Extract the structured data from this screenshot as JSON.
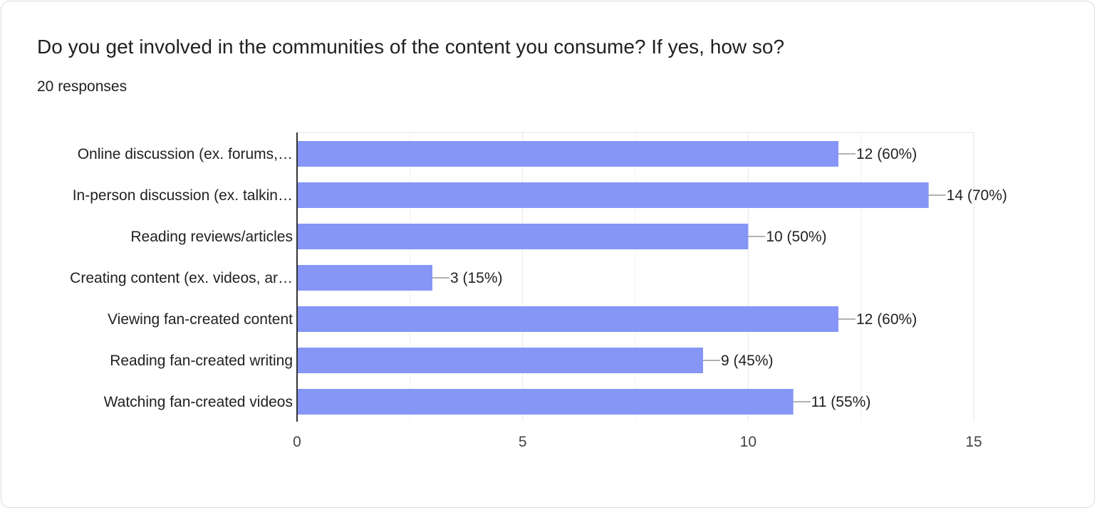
{
  "card": {
    "question": "Do you get involved in the communities of the content you consume? If yes, how so?",
    "responses": "20 responses"
  },
  "colors": {
    "bar": "#8596f7",
    "grid": "#e6e6e6",
    "axis": "#333333",
    "text": "#202124",
    "leader": "#999999"
  },
  "chart_data": {
    "type": "bar",
    "orientation": "horizontal",
    "categories": [
      "Online discussion (ex. forums,…",
      "In-person discussion (ex. talkin…",
      "Reading reviews/articles",
      "Creating content (ex. videos, ar…",
      "Viewing fan-created content",
      "Reading fan-created writing",
      "Watching fan-created videos"
    ],
    "values": [
      12,
      14,
      10,
      3,
      12,
      9,
      11
    ],
    "data_labels": [
      "12 (60%)",
      "14 (70%)",
      "10 (50%)",
      "3 (15%)",
      "12 (60%)",
      "9 (45%)",
      "11 (55%)"
    ],
    "xlim": [
      0,
      15
    ],
    "xticks": [
      0,
      5,
      10,
      15
    ],
    "minor_gridlines": [
      2.5,
      7.5,
      12.5
    ],
    "grid": true
  }
}
